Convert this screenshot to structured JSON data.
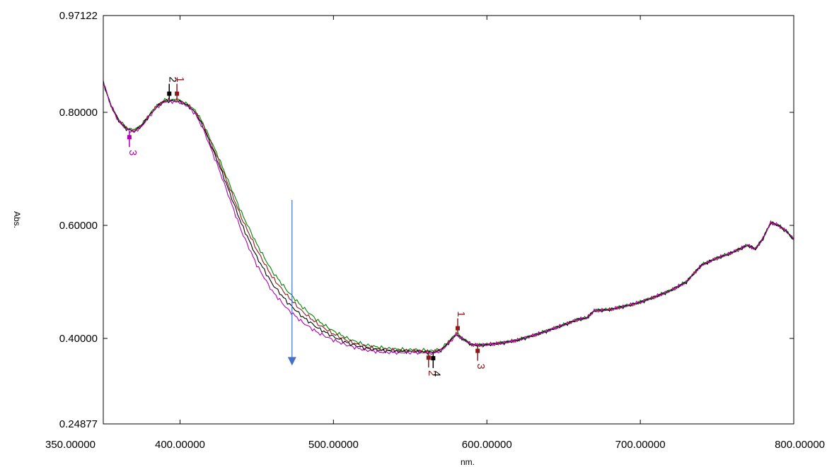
{
  "chart_data": {
    "type": "line",
    "title": "",
    "xlabel": "nm.",
    "ylabel": "Abs.",
    "xlim": [
      350,
      800
    ],
    "ylim": [
      0.24877,
      0.97122
    ],
    "x_ticks": [
      {
        "value": 350,
        "label": "350.00000"
      },
      {
        "value": 400,
        "label": "400.00000"
      },
      {
        "value": 500,
        "label": "500.00000"
      },
      {
        "value": 600,
        "label": "600.00000"
      },
      {
        "value": 700,
        "label": "700.00000"
      },
      {
        "value": 800,
        "label": "800.00000"
      }
    ],
    "y_ticks": [
      {
        "value": 0.24877,
        "label": "0.24877"
      },
      {
        "value": 0.4,
        "label": "0.40000"
      },
      {
        "value": 0.6,
        "label": "0.60000"
      },
      {
        "value": 0.8,
        "label": "0.80000"
      },
      {
        "value": 0.97122,
        "label": "0.97122"
      }
    ],
    "grid": false,
    "x": [
      350,
      355,
      360,
      365,
      370,
      375,
      380,
      385,
      390,
      395,
      400,
      405,
      410,
      415,
      420,
      425,
      430,
      440,
      450,
      460,
      470,
      480,
      490,
      500,
      510,
      520,
      530,
      540,
      550,
      560,
      565,
      570,
      575,
      580,
      585,
      590,
      595,
      600,
      610,
      620,
      630,
      640,
      650,
      660,
      665,
      670,
      680,
      690,
      700,
      710,
      720,
      730,
      740,
      750,
      760,
      770,
      775,
      780,
      785,
      790,
      795,
      800
    ],
    "series": [
      {
        "color": "#008000",
        "values": [
          0.853,
          0.812,
          0.787,
          0.773,
          0.768,
          0.778,
          0.796,
          0.812,
          0.822,
          0.822,
          0.821,
          0.814,
          0.803,
          0.781,
          0.751,
          0.721,
          0.688,
          0.623,
          0.567,
          0.519,
          0.484,
          0.455,
          0.431,
          0.413,
          0.399,
          0.389,
          0.384,
          0.381,
          0.38,
          0.379,
          0.378,
          0.381,
          0.394,
          0.409,
          0.398,
          0.389,
          0.388,
          0.389,
          0.392,
          0.397,
          0.405,
          0.414,
          0.424,
          0.434,
          0.436,
          0.449,
          0.451,
          0.457,
          0.464,
          0.474,
          0.485,
          0.5,
          0.53,
          0.542,
          0.552,
          0.565,
          0.558,
          0.577,
          0.605,
          0.6,
          0.59,
          0.575
        ]
      },
      {
        "color": "#8b1a1a",
        "values": [
          0.853,
          0.812,
          0.786,
          0.772,
          0.767,
          0.777,
          0.795,
          0.811,
          0.821,
          0.821,
          0.82,
          0.813,
          0.801,
          0.778,
          0.747,
          0.716,
          0.682,
          0.614,
          0.557,
          0.509,
          0.475,
          0.447,
          0.425,
          0.408,
          0.395,
          0.386,
          0.381,
          0.379,
          0.378,
          0.377,
          0.376,
          0.38,
          0.393,
          0.408,
          0.398,
          0.389,
          0.388,
          0.389,
          0.392,
          0.397,
          0.405,
          0.414,
          0.424,
          0.434,
          0.436,
          0.449,
          0.451,
          0.457,
          0.464,
          0.474,
          0.485,
          0.5,
          0.53,
          0.542,
          0.552,
          0.565,
          0.558,
          0.577,
          0.605,
          0.6,
          0.59,
          0.575
        ]
      },
      {
        "color": "#000000",
        "values": [
          0.853,
          0.812,
          0.785,
          0.771,
          0.766,
          0.776,
          0.794,
          0.81,
          0.82,
          0.82,
          0.819,
          0.812,
          0.799,
          0.775,
          0.743,
          0.71,
          0.675,
          0.603,
          0.544,
          0.497,
          0.464,
          0.438,
          0.418,
          0.403,
          0.391,
          0.383,
          0.379,
          0.377,
          0.377,
          0.376,
          0.375,
          0.379,
          0.392,
          0.407,
          0.398,
          0.389,
          0.388,
          0.389,
          0.392,
          0.397,
          0.405,
          0.414,
          0.424,
          0.434,
          0.436,
          0.449,
          0.451,
          0.457,
          0.464,
          0.474,
          0.485,
          0.5,
          0.53,
          0.542,
          0.552,
          0.565,
          0.558,
          0.577,
          0.605,
          0.6,
          0.59,
          0.575
        ]
      },
      {
        "color": "#b000b0",
        "values": [
          0.853,
          0.812,
          0.784,
          0.77,
          0.765,
          0.775,
          0.793,
          0.809,
          0.819,
          0.819,
          0.818,
          0.811,
          0.797,
          0.771,
          0.737,
          0.702,
          0.665,
          0.59,
          0.53,
          0.484,
          0.452,
          0.428,
          0.41,
          0.397,
          0.387,
          0.38,
          0.376,
          0.375,
          0.375,
          0.375,
          0.374,
          0.378,
          0.391,
          0.406,
          0.398,
          0.389,
          0.388,
          0.389,
          0.392,
          0.397,
          0.405,
          0.414,
          0.424,
          0.434,
          0.436,
          0.449,
          0.451,
          0.457,
          0.464,
          0.474,
          0.485,
          0.5,
          0.53,
          0.542,
          0.552,
          0.565,
          0.558,
          0.577,
          0.605,
          0.6,
          0.59,
          0.575
        ]
      }
    ],
    "peak_markers": [
      {
        "label": "2",
        "x": 393,
        "y": 0.823,
        "color": "#000000",
        "side": "above"
      },
      {
        "label": "1",
        "x": 398,
        "y": 0.823,
        "color": "#8b1a1a",
        "side": "above"
      },
      {
        "label": "3",
        "x": 367,
        "y": 0.766,
        "color": "#b000b0",
        "side": "below"
      },
      {
        "label": "1",
        "x": 581,
        "y": 0.408,
        "color": "#8b1a1a",
        "side": "above"
      },
      {
        "label": "3",
        "x": 594,
        "y": 0.388,
        "color": "#8b1a1a",
        "side": "below"
      },
      {
        "label": "2",
        "x": 562,
        "y": 0.376,
        "color": "#8b1a1a",
        "side": "below"
      },
      {
        "label": "4",
        "x": 565,
        "y": 0.375,
        "color": "#000000",
        "side": "below"
      }
    ],
    "annotation_arrow": {
      "x": 473,
      "y_from": 0.645,
      "y_to": 0.352,
      "color": "#4472c4"
    }
  }
}
